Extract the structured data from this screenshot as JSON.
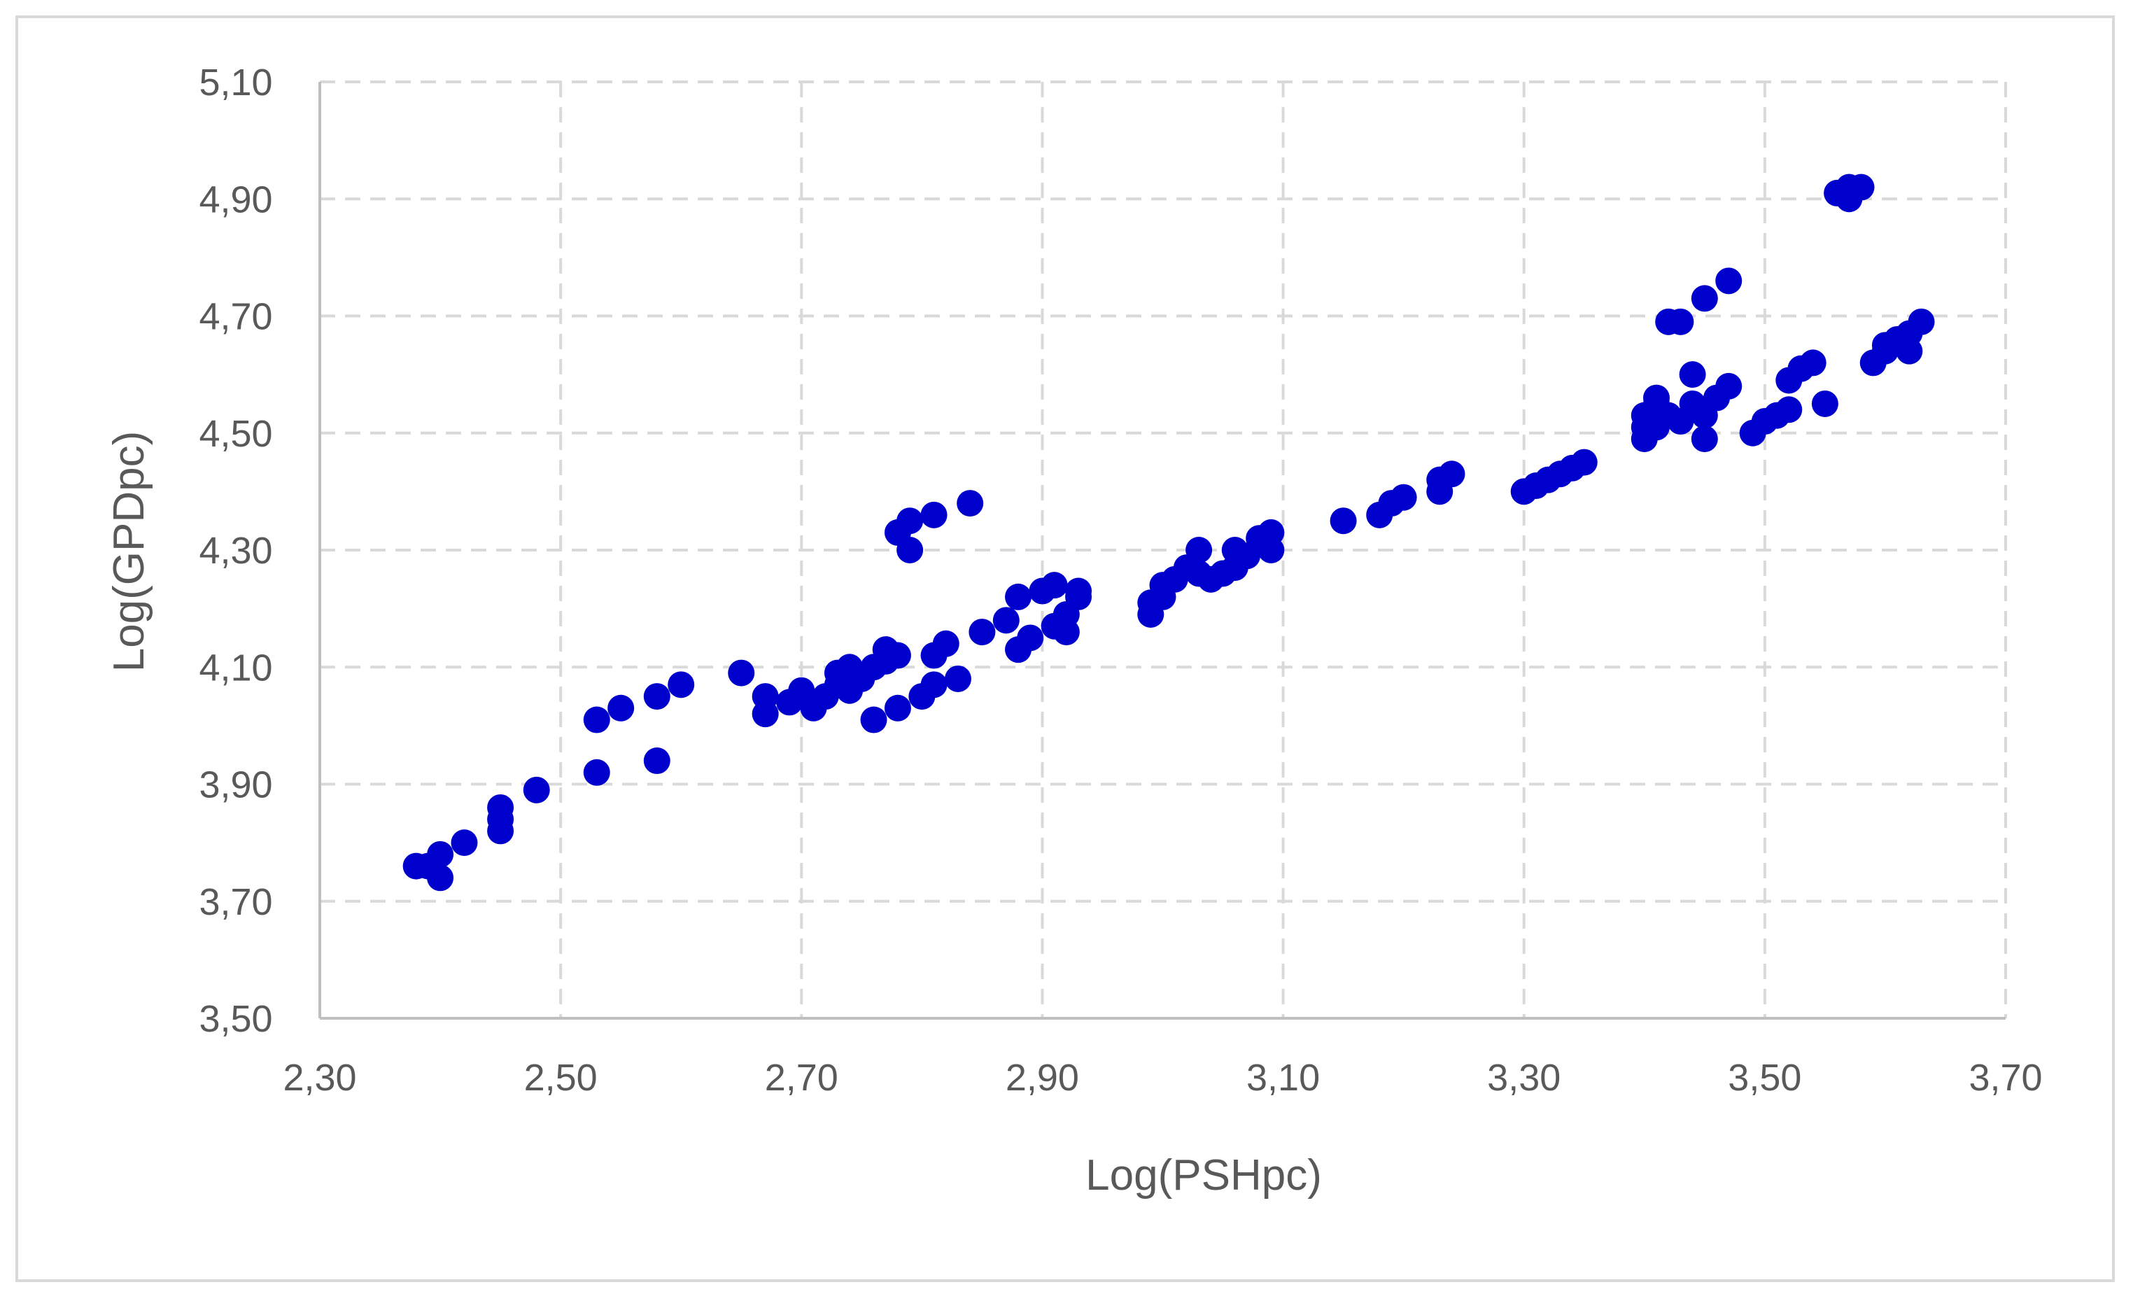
{
  "chart_data": {
    "type": "scatter",
    "title": "",
    "xlabel": "Log(PSHpc)",
    "ylabel": "Log(GPDpc)",
    "xlim": [
      2.3,
      3.7
    ],
    "ylim": [
      3.5,
      5.1
    ],
    "x_ticks": [
      "2,30",
      "2,50",
      "2,70",
      "2,90",
      "3,10",
      "3,30",
      "3,50",
      "3,70"
    ],
    "y_ticks": [
      "3,50",
      "3,70",
      "3,90",
      "4,10",
      "4,30",
      "4,50",
      "4,70",
      "4,90",
      "5,10"
    ],
    "grid": true,
    "legend": "none",
    "marker_color": "#0000cc",
    "points": [
      [
        2.38,
        3.76
      ],
      [
        2.39,
        3.76
      ],
      [
        2.4,
        3.78
      ],
      [
        2.4,
        3.74
      ],
      [
        2.42,
        3.8
      ],
      [
        2.45,
        3.84
      ],
      [
        2.45,
        3.86
      ],
      [
        2.45,
        3.82
      ],
      [
        2.48,
        3.89
      ],
      [
        2.53,
        3.92
      ],
      [
        2.53,
        4.01
      ],
      [
        2.55,
        4.03
      ],
      [
        2.58,
        4.05
      ],
      [
        2.58,
        3.94
      ],
      [
        2.6,
        4.07
      ],
      [
        2.65,
        4.09
      ],
      [
        2.67,
        4.05
      ],
      [
        2.67,
        4.02
      ],
      [
        2.69,
        4.04
      ],
      [
        2.7,
        4.06
      ],
      [
        2.71,
        4.03
      ],
      [
        2.72,
        4.05
      ],
      [
        2.73,
        4.07
      ],
      [
        2.73,
        4.09
      ],
      [
        2.74,
        4.1
      ],
      [
        2.74,
        4.06
      ],
      [
        2.75,
        4.08
      ],
      [
        2.76,
        4.01
      ],
      [
        2.76,
        4.1
      ],
      [
        2.77,
        4.11
      ],
      [
        2.77,
        4.13
      ],
      [
        2.78,
        4.12
      ],
      [
        2.78,
        4.03
      ],
      [
        2.78,
        4.33
      ],
      [
        2.79,
        4.3
      ],
      [
        2.79,
        4.35
      ],
      [
        2.8,
        4.05
      ],
      [
        2.81,
        4.36
      ],
      [
        2.81,
        4.07
      ],
      [
        2.81,
        4.12
      ],
      [
        2.82,
        4.14
      ],
      [
        2.83,
        4.08
      ],
      [
        2.84,
        4.38
      ],
      [
        2.85,
        4.16
      ],
      [
        2.87,
        4.18
      ],
      [
        2.88,
        4.13
      ],
      [
        2.88,
        4.22
      ],
      [
        2.89,
        4.15
      ],
      [
        2.9,
        4.23
      ],
      [
        2.91,
        4.24
      ],
      [
        2.91,
        4.17
      ],
      [
        2.92,
        4.16
      ],
      [
        2.92,
        4.19
      ],
      [
        2.93,
        4.23
      ],
      [
        2.93,
        4.22
      ],
      [
        2.99,
        4.19
      ],
      [
        2.99,
        4.21
      ],
      [
        3.0,
        4.22
      ],
      [
        3.0,
        4.24
      ],
      [
        3.01,
        4.25
      ],
      [
        3.02,
        4.27
      ],
      [
        3.03,
        4.26
      ],
      [
        3.03,
        4.3
      ],
      [
        3.04,
        4.25
      ],
      [
        3.05,
        4.26
      ],
      [
        3.06,
        4.27
      ],
      [
        3.06,
        4.3
      ],
      [
        3.07,
        4.29
      ],
      [
        3.08,
        4.32
      ],
      [
        3.09,
        4.3
      ],
      [
        3.09,
        4.33
      ],
      [
        3.15,
        4.35
      ],
      [
        3.18,
        4.36
      ],
      [
        3.19,
        4.38
      ],
      [
        3.2,
        4.39
      ],
      [
        3.23,
        4.4
      ],
      [
        3.23,
        4.42
      ],
      [
        3.24,
        4.43
      ],
      [
        3.3,
        4.4
      ],
      [
        3.31,
        4.41
      ],
      [
        3.32,
        4.42
      ],
      [
        3.33,
        4.43
      ],
      [
        3.34,
        4.44
      ],
      [
        3.35,
        4.45
      ],
      [
        3.4,
        4.49
      ],
      [
        3.4,
        4.51
      ],
      [
        3.4,
        4.53
      ],
      [
        3.41,
        4.55
      ],
      [
        3.41,
        4.56
      ],
      [
        3.41,
        4.51
      ],
      [
        3.42,
        4.69
      ],
      [
        3.42,
        4.53
      ],
      [
        3.43,
        4.69
      ],
      [
        3.43,
        4.52
      ],
      [
        3.44,
        4.6
      ],
      [
        3.44,
        4.55
      ],
      [
        3.45,
        4.73
      ],
      [
        3.45,
        4.49
      ],
      [
        3.45,
        4.53
      ],
      [
        3.46,
        4.56
      ],
      [
        3.47,
        4.58
      ],
      [
        3.47,
        4.76
      ],
      [
        3.49,
        4.5
      ],
      [
        3.5,
        4.52
      ],
      [
        3.51,
        4.53
      ],
      [
        3.52,
        4.54
      ],
      [
        3.52,
        4.59
      ],
      [
        3.53,
        4.61
      ],
      [
        3.54,
        4.62
      ],
      [
        3.55,
        4.55
      ],
      [
        3.56,
        4.91
      ],
      [
        3.57,
        4.9
      ],
      [
        3.57,
        4.92
      ],
      [
        3.58,
        4.92
      ],
      [
        3.59,
        4.62
      ],
      [
        3.6,
        4.64
      ],
      [
        3.6,
        4.65
      ],
      [
        3.61,
        4.66
      ],
      [
        3.62,
        4.67
      ],
      [
        3.62,
        4.64
      ],
      [
        3.63,
        4.69
      ]
    ]
  }
}
